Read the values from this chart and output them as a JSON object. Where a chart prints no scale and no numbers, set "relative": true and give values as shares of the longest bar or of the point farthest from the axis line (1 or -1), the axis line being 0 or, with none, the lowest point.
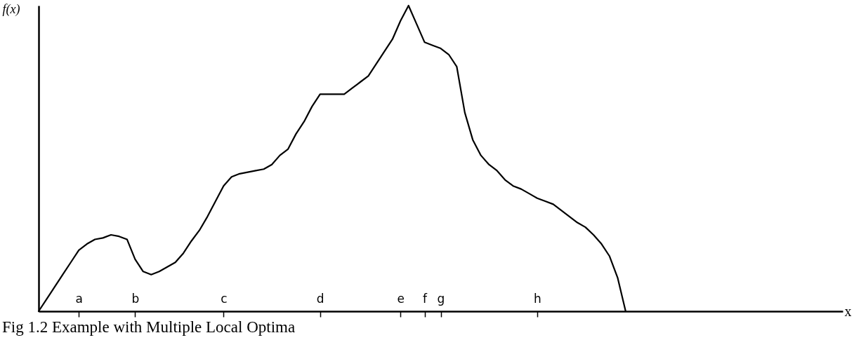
{
  "chart_data": {
    "type": "line",
    "title": "Fig 1.2 Example with Multiple Local Optima",
    "xlabel": "x",
    "ylabel": "f(x)",
    "relative": true,
    "categories": [
      null,
      null,
      null,
      null,
      null,
      "a",
      null,
      null,
      null,
      null,
      null,
      null,
      "b",
      null,
      null,
      null,
      null,
      null,
      null,
      null,
      null,
      null,
      null,
      "c",
      null,
      null,
      null,
      null,
      null,
      null,
      null,
      null,
      null,
      null,
      null,
      "d",
      null,
      null,
      null,
      null,
      null,
      null,
      null,
      null,
      null,
      "e",
      null,
      null,
      "f",
      null,
      "g",
      null,
      null,
      null,
      null,
      null,
      null,
      null,
      null,
      null,
      null,
      null,
      "h",
      null,
      null,
      null,
      null,
      null,
      null,
      null,
      null,
      null,
      null,
      null,
      null,
      null,
      null,
      null,
      null,
      null,
      null,
      null,
      null,
      null,
      null,
      null,
      null,
      null,
      null,
      null,
      null,
      null,
      null,
      null,
      null,
      null,
      null,
      null,
      null,
      null,
      null
    ],
    "series": [
      {
        "color": "#000000",
        "values": [
          0,
          0.04,
          0.08,
          0.12,
          0.16,
          0.2,
          0.22,
          0.235,
          0.24,
          0.25,
          0.245,
          0.235,
          0.17,
          0.13,
          0.12,
          0.13,
          0.145,
          0.16,
          0.19,
          0.23,
          0.265,
          0.31,
          0.36,
          0.41,
          0.44,
          0.45,
          0.455,
          0.46,
          0.465,
          0.48,
          0.51,
          0.53,
          0.58,
          0.62,
          0.67,
          0.71,
          0.71,
          0.71,
          0.71,
          0.73,
          0.75,
          0.77,
          0.81,
          0.85,
          0.89,
          0.95,
          1,
          0.94,
          0.88,
          0.87,
          0.86,
          0.84,
          0.8,
          0.65,
          0.56,
          0.51,
          0.48,
          0.46,
          0.43,
          0.41,
          0.4,
          0.385,
          0.37,
          0.36,
          0.35,
          0.33,
          0.31,
          0.29,
          0.275,
          0.25,
          0.22,
          0.18,
          0.11,
          0,
          null,
          null,
          null,
          null,
          null,
          null,
          null,
          null,
          null,
          null,
          null,
          null,
          null,
          null,
          null,
          null,
          null,
          null,
          null,
          null,
          null,
          null,
          null,
          null,
          null,
          null,
          null
        ]
      }
    ]
  }
}
